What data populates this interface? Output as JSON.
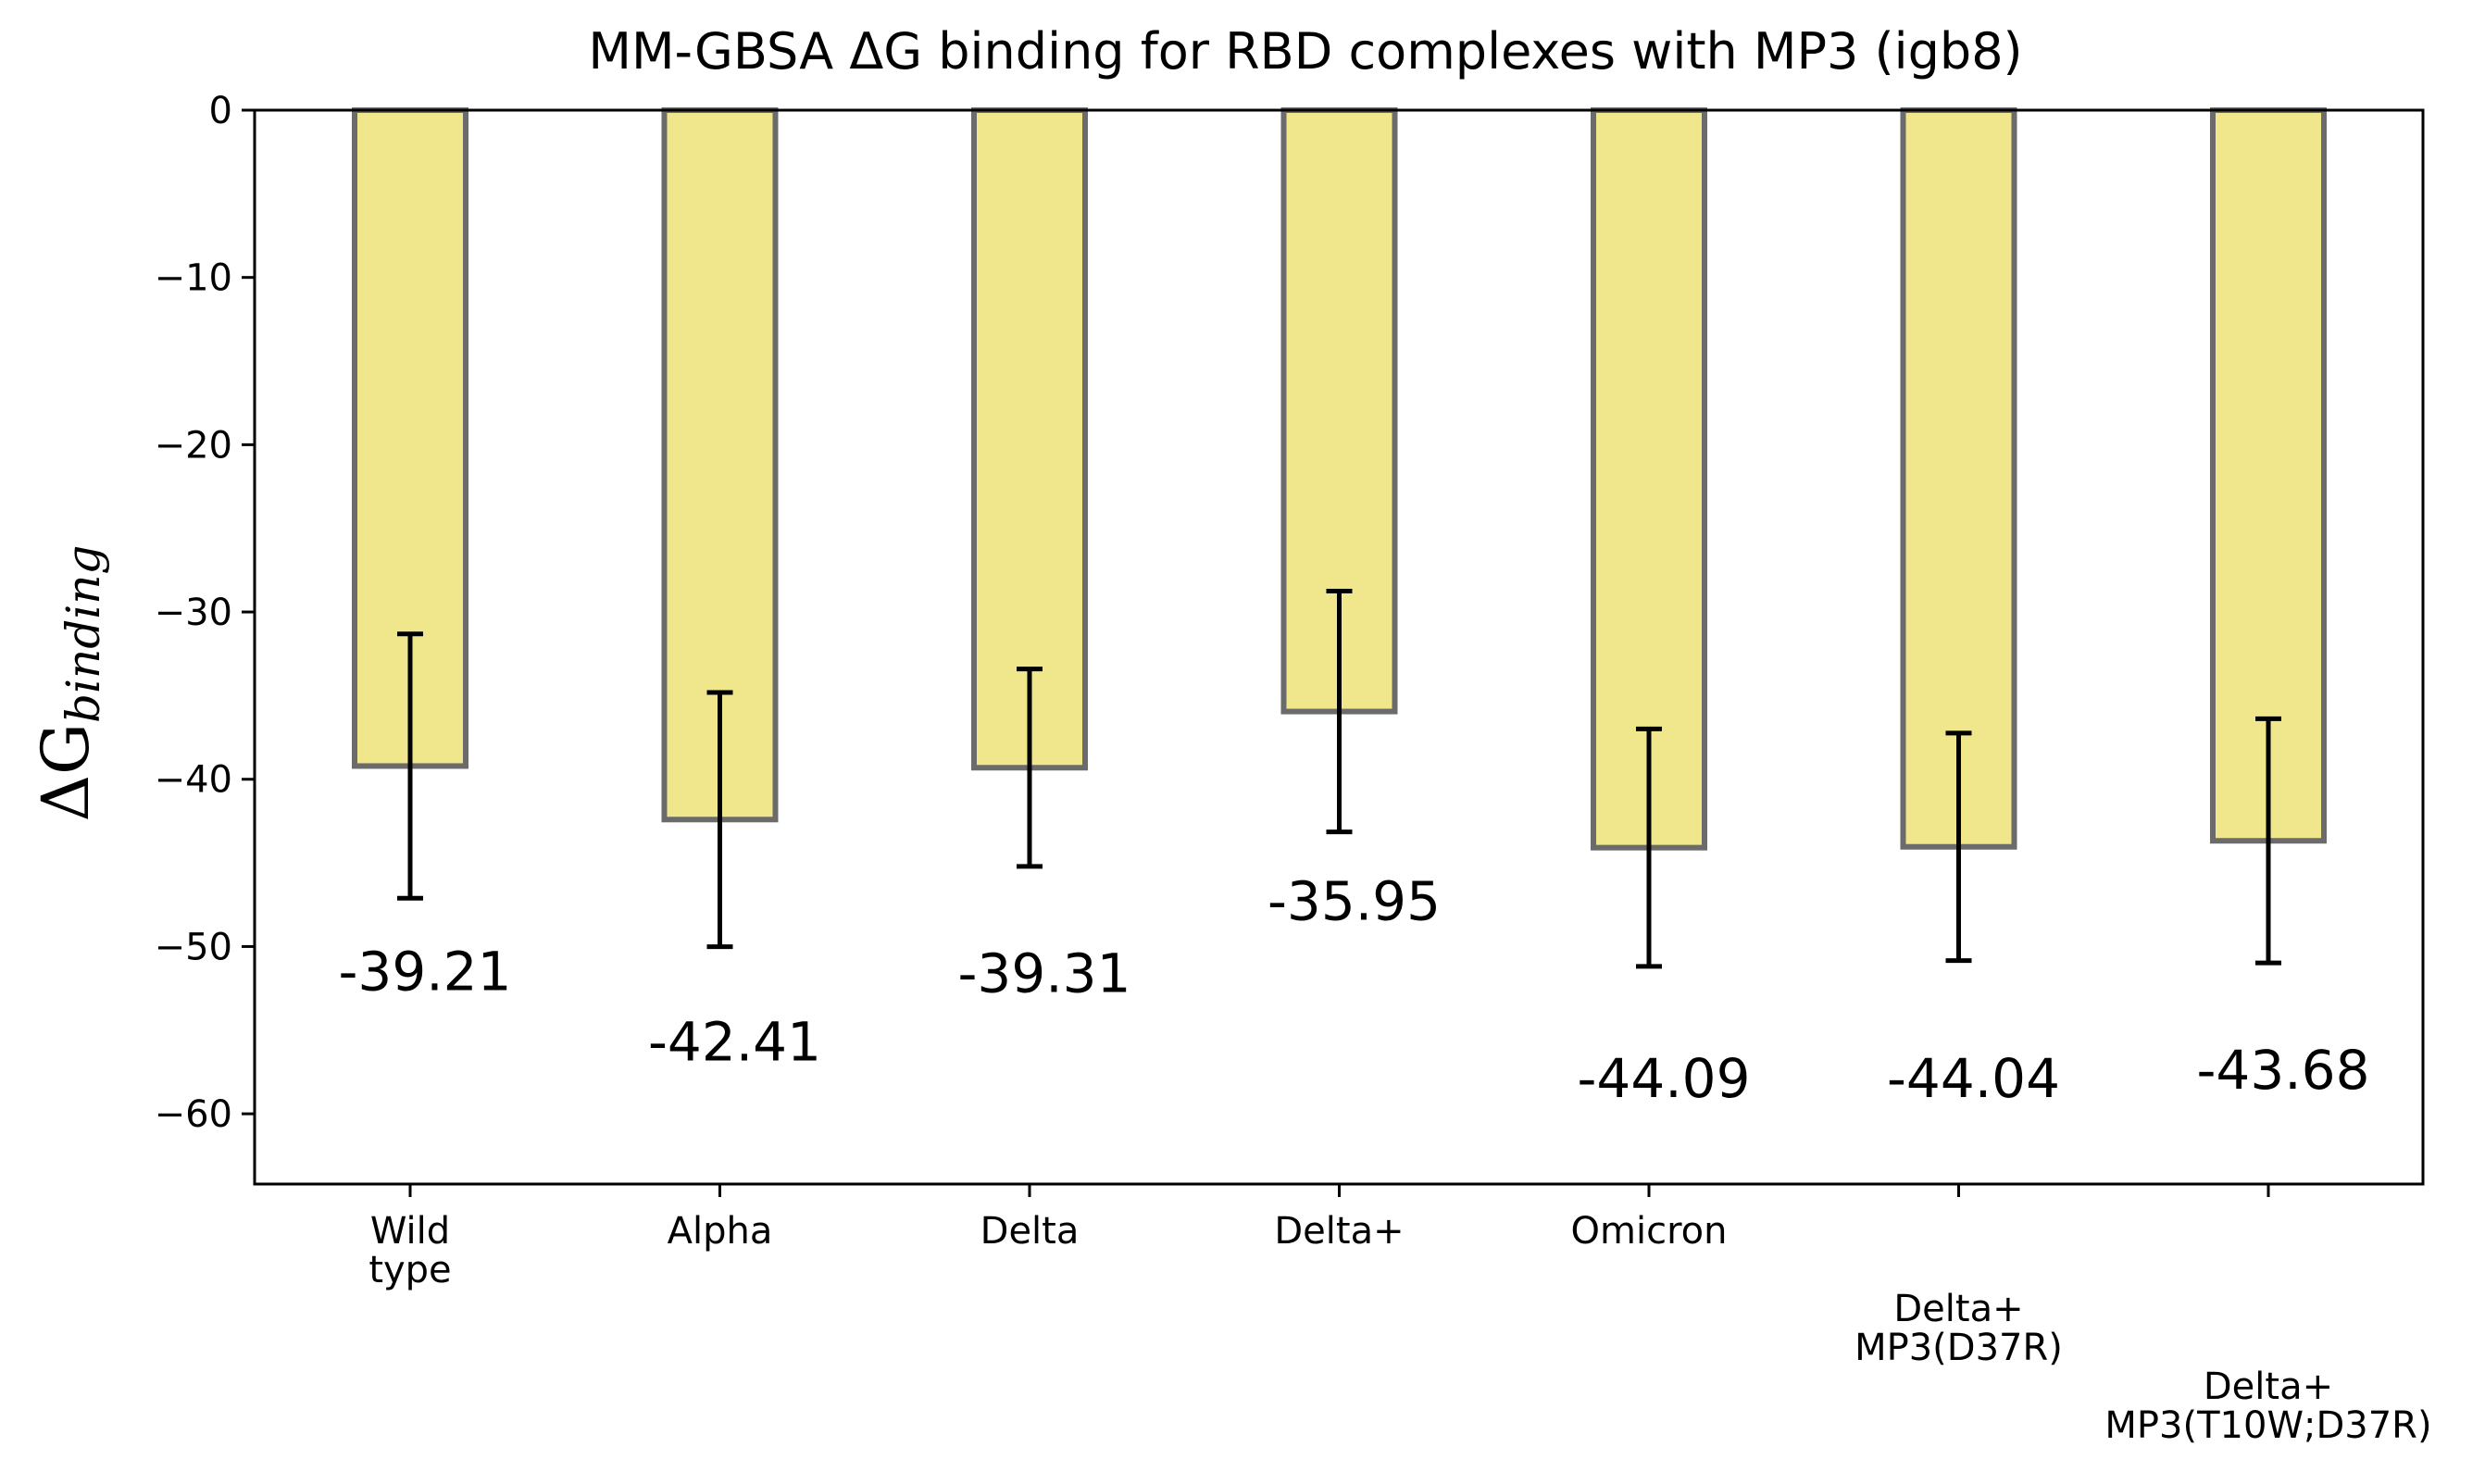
{
  "chart_data": {
    "type": "bar",
    "title": "MM-GBSA ΔG binding for RBD complexes with MP3 (igb8)",
    "ylabel_main": "ΔG",
    "ylabel_sub": "binding",
    "ylim": [
      -64.2,
      0
    ],
    "yticks": [
      0,
      -10,
      -20,
      -30,
      -40,
      -50,
      -60
    ],
    "ytick_labels": [
      "0",
      "−10",
      "−20",
      "−30",
      "−40",
      "−50",
      "−60"
    ],
    "categories": [
      [
        "Wild",
        "type"
      ],
      [
        "Alpha"
      ],
      [
        "Delta"
      ],
      [
        "Delta+"
      ],
      [
        "Omicron"
      ],
      [
        "Delta+",
        "MP3(D37R)"
      ],
      [
        "Delta+",
        "MP3(T10W;D37R)"
      ]
    ],
    "label_offsets": [
      0,
      0,
      0,
      0,
      0,
      1,
      2
    ],
    "values": [
      -39.21,
      -42.41,
      -39.31,
      -35.95,
      -44.09,
      -44.04,
      -43.68
    ],
    "value_labels": [
      "-39.21",
      "-42.41",
      "-39.31",
      "-35.95",
      "-44.09",
      "-44.04",
      "-43.68"
    ],
    "errors": [
      7.9,
      7.6,
      5.9,
      7.2,
      7.1,
      6.8,
      7.3
    ],
    "value_label_y": [
      -51.5,
      -55.7,
      -51.6,
      -47.3,
      -57.9,
      -57.9,
      -57.4
    ],
    "bar_color": "#f0e68c",
    "bar_edge_color": "#6b6b6b",
    "error_color": "#000000",
    "grid": false,
    "legend": "none"
  }
}
